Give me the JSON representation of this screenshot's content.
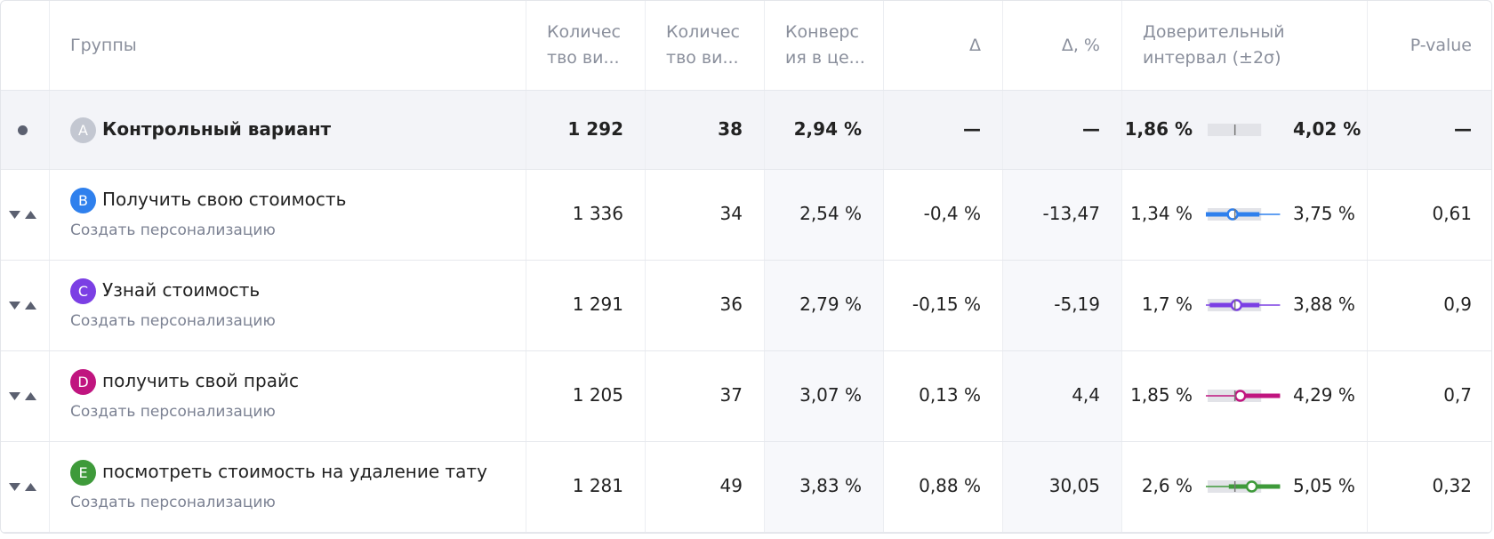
{
  "header": {
    "columns": [
      [
        "Группы"
      ],
      [
        "Количес",
        "тво ви..."
      ],
      [
        "Количес",
        "тво ви..."
      ],
      [
        "Конверс",
        "ия в це..."
      ],
      [
        "Δ"
      ],
      [
        "Δ, %"
      ],
      [
        "Доверительный",
        "интервал (±2σ)"
      ],
      [
        "P-value"
      ]
    ]
  },
  "rows": [
    {
      "letter": "A",
      "color": "#c3c7d1",
      "name": "Контрольный вариант",
      "visitors": "1 292",
      "goals": "38",
      "conversion": "2,94 %",
      "delta": "—",
      "delta_pct": "—",
      "ci_low": "1,86 %",
      "ci_high": "4,02 %",
      "p_value": "—"
    },
    {
      "letter": "B",
      "color": "#2f80ed",
      "name": "Получить свою стоимость",
      "sub": "Создать персонализацию",
      "visitors": "1 336",
      "goals": "34",
      "conversion": "2,54 %",
      "delta": "-0,4 %",
      "delta_pct": "-13,47",
      "ci_low": "1,34 %",
      "ci_high": "3,75 %",
      "p_value": "0,61"
    },
    {
      "letter": "C",
      "color": "#7b3fe4",
      "name": "Узнай стоимость",
      "sub": "Создать персонализацию",
      "visitors": "1 291",
      "goals": "36",
      "conversion": "2,79 %",
      "delta": "-0,15 %",
      "delta_pct": "-5,19",
      "ci_low": "1,7 %",
      "ci_high": "3,88 %",
      "p_value": "0,9"
    },
    {
      "letter": "D",
      "color": "#c0157f",
      "name": "получить свой прайс",
      "sub": "Создать персонализацию",
      "visitors": "1 205",
      "goals": "37",
      "conversion": "3,07 %",
      "delta": "0,13 %",
      "delta_pct": "4,4",
      "ci_low": "1,85 %",
      "ci_high": "4,29 %",
      "p_value": "0,7"
    },
    {
      "letter": "E",
      "color": "#3e9a3a",
      "name": "посмотреть стоимость на удаление тату",
      "sub": "Создать персонализацию",
      "visitors": "1 281",
      "goals": "49",
      "conversion": "3,83 %",
      "delta": "0,88 %",
      "delta_pct": "30,05",
      "ci_low": "2,6 %",
      "ci_high": "5,05 %",
      "p_value": "0,32"
    }
  ]
}
